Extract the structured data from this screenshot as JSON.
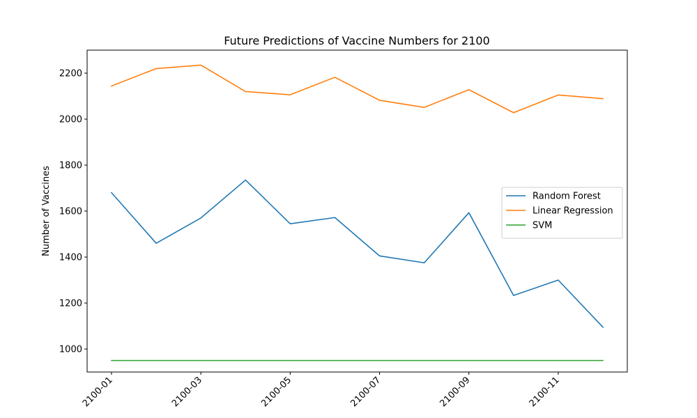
{
  "chart_data": {
    "type": "line",
    "title": "Future Predictions of Vaccine Numbers for 2100",
    "xlabel": "",
    "ylabel": "Number of Vaccines",
    "x": [
      "2100-01",
      "2100-02",
      "2100-03",
      "2100-04",
      "2100-05",
      "2100-06",
      "2100-07",
      "2100-08",
      "2100-09",
      "2100-10",
      "2100-11",
      "2100-12"
    ],
    "x_tick_labels": [
      "2100-01",
      "2100-03",
      "2100-05",
      "2100-07",
      "2100-09",
      "2100-11"
    ],
    "y_ticks": [
      1000,
      1200,
      1400,
      1600,
      1800,
      2000,
      2200
    ],
    "ylim": [
      900,
      2300
    ],
    "grid": false,
    "legend_position": "center-right",
    "series": [
      {
        "name": "Random Forest",
        "color": "#1f77b4",
        "values": [
          1680,
          1460,
          1570,
          1735,
          1545,
          1572,
          1405,
          1375,
          1593,
          1233,
          1300,
          1095
        ]
      },
      {
        "name": "Linear Regression",
        "color": "#ff7f0e",
        "values": [
          2144,
          2220,
          2235,
          2120,
          2106,
          2182,
          2082,
          2051,
          2128,
          2028,
          2105,
          2089
        ]
      },
      {
        "name": "SVM",
        "color": "#2ca02c",
        "values": [
          950,
          950,
          950,
          950,
          950,
          950,
          950,
          950,
          950,
          950,
          950,
          950
        ]
      }
    ]
  }
}
